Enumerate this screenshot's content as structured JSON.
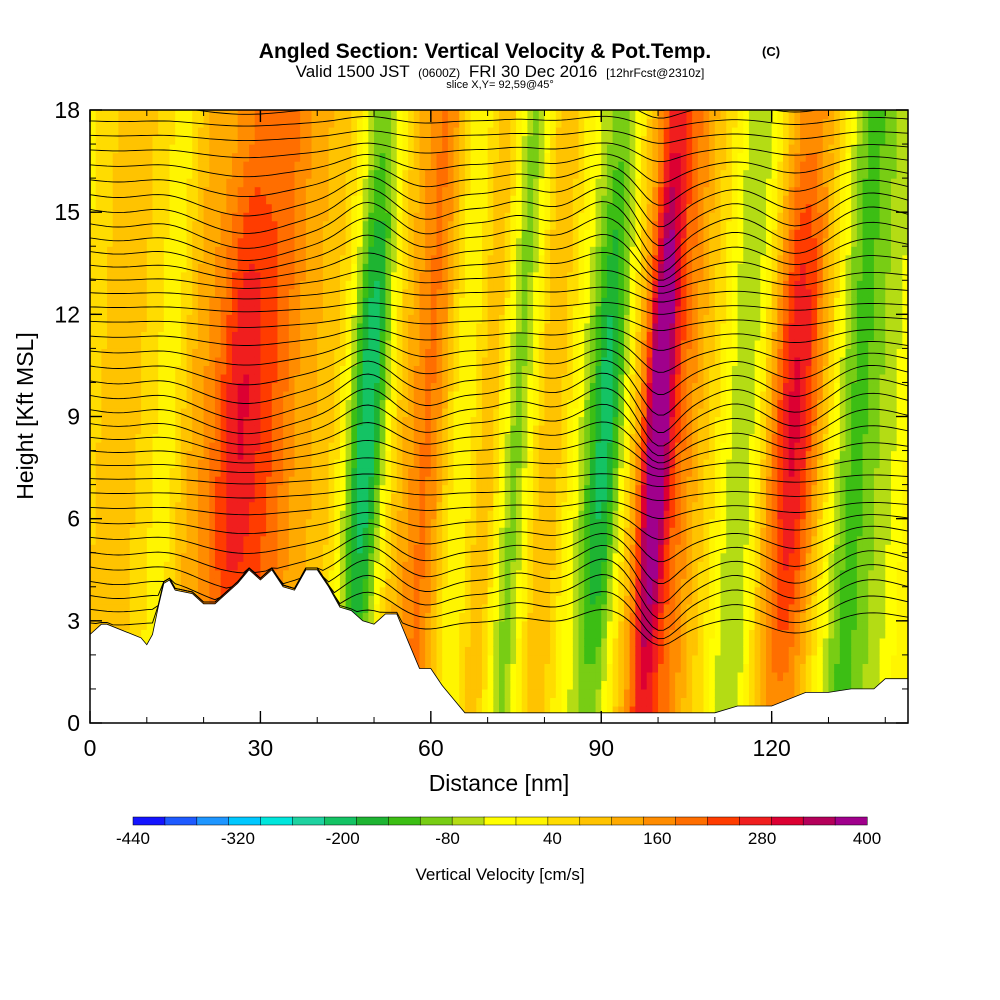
{
  "chart_data": {
    "type": "heatmap",
    "title": "Angled Section: Vertical Velocity & Pot.Temp.",
    "title_mark": "(C)",
    "subtitle_parts": [
      "Valid 1500 JST",
      "(0600Z)",
      "FRI 30 Dec 2016",
      "[12hrFcst@2310z]"
    ],
    "slice_label": "slice X,Y= 92,59@45°",
    "xlabel": "Distance [nm]",
    "ylabel": "Height [Kft MSL]",
    "xlim": [
      0,
      144
    ],
    "ylim": [
      0,
      18
    ],
    "x_ticks": [
      0,
      30,
      60,
      90,
      120
    ],
    "y_ticks": [
      0,
      3,
      6,
      9,
      12,
      15,
      18
    ],
    "colorbar": {
      "label": "Vertical Velocity [cm/s]",
      "ticks": [
        -440,
        -320,
        -200,
        -80,
        40,
        160,
        280,
        400
      ],
      "vmin": -440,
      "vmax": 400,
      "step": 40,
      "colors": [
        "#1414ff",
        "#1e5aff",
        "#1e96ff",
        "#00c8ff",
        "#00e6dc",
        "#1ed2a0",
        "#14c364",
        "#1eb432",
        "#3cbe14",
        "#78cd14",
        "#b4dc14",
        "#ffff00",
        "#fff500",
        "#ffdc00",
        "#ffc300",
        "#ffaa00",
        "#ff8c00",
        "#ff6e00",
        "#ff3c00",
        "#f01e1e",
        "#dc0032",
        "#b4005a",
        "#a0008c"
      ]
    },
    "terrain_profile": {
      "x": [
        0,
        2,
        3,
        9,
        10,
        11,
        12,
        13,
        14,
        15,
        18,
        20,
        22,
        24,
        26,
        28,
        30,
        32,
        34,
        36,
        38,
        40,
        42,
        44,
        46,
        48,
        50,
        52,
        54,
        56,
        58,
        60,
        62,
        64,
        66,
        68,
        70,
        72,
        74,
        76,
        80,
        86,
        92,
        100,
        110,
        114,
        120,
        126,
        130,
        134,
        138,
        140,
        144
      ],
      "height": [
        2.6,
        2.9,
        2.9,
        2.5,
        2.3,
        2.6,
        3.4,
        4.1,
        4.2,
        3.9,
        3.8,
        3.5,
        3.5,
        3.8,
        4.1,
        4.5,
        4.2,
        4.5,
        4.0,
        3.9,
        4.5,
        4.5,
        4.0,
        3.4,
        3.3,
        3.0,
        2.9,
        3.2,
        3.2,
        2.4,
        1.6,
        1.6,
        1.1,
        0.7,
        0.3,
        0.3,
        0.3,
        0.3,
        0.3,
        0.3,
        0.3,
        0.3,
        0.3,
        0.3,
        0.3,
        0.5,
        0.5,
        0.9,
        0.9,
        1.0,
        1.0,
        1.3,
        1.3
      ]
    },
    "bands": [
      {
        "x": 4,
        "w": 2.5,
        "v": 60
      },
      {
        "x": 10,
        "w": 3,
        "v": 40
      },
      {
        "x": 14,
        "w": 2.5,
        "v": -60
      },
      {
        "x": 18,
        "w": 3,
        "v": 80
      },
      {
        "x": 26,
        "w": 3.5,
        "v": 240
      },
      {
        "x": 33,
        "w": 3.5,
        "v": 140
      },
      {
        "x": 41,
        "w": 3,
        "v": 60
      },
      {
        "x": 49,
        "w": 2.5,
        "v": -260
      },
      {
        "x": 55,
        "w": 3,
        "v": 60
      },
      {
        "x": 60,
        "w": 2.5,
        "v": 140
      },
      {
        "x": 66,
        "w": 2.5,
        "v": -40
      },
      {
        "x": 71,
        "w": 2.5,
        "v": 100
      },
      {
        "x": 75,
        "w": 2.5,
        "v": -150
      },
      {
        "x": 81,
        "w": 3,
        "v": 80
      },
      {
        "x": 86,
        "w": 2.5,
        "v": -40
      },
      {
        "x": 91,
        "w": 2.5,
        "v": -230
      },
      {
        "x": 96,
        "w": 2,
        "v": 60
      },
      {
        "x": 100,
        "w": 1.8,
        "v": 380
      },
      {
        "x": 104,
        "w": 2.5,
        "v": 140
      },
      {
        "x": 110,
        "w": 3,
        "v": 40
      },
      {
        "x": 115,
        "w": 3,
        "v": -120
      },
      {
        "x": 124,
        "w": 3.5,
        "v": 270
      },
      {
        "x": 130,
        "w": 2.5,
        "v": 0
      },
      {
        "x": 135,
        "w": 3,
        "v": -150
      },
      {
        "x": 141,
        "w": 2.5,
        "v": -60
      }
    ]
  }
}
